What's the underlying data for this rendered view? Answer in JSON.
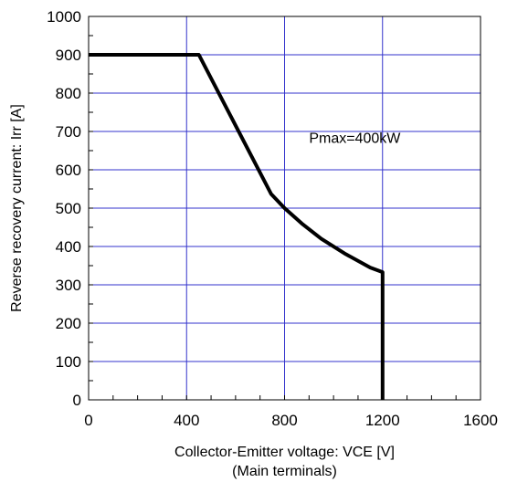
{
  "chart_data": {
    "type": "line",
    "title": "",
    "xlabel": "Collector-Emitter voltage: VCE [V]",
    "xlabel_sub": "(Main terminals)",
    "ylabel": "Reverse recovery current: Irr [A]",
    "xlim": [
      0,
      1600
    ],
    "ylim": [
      0,
      1000
    ],
    "x_ticks": [
      0,
      400,
      800,
      1200,
      1600
    ],
    "y_ticks": [
      0,
      100,
      200,
      300,
      400,
      500,
      600,
      700,
      800,
      900,
      1000
    ],
    "grid": true,
    "grid_color": "#3333cc",
    "line_color": "#000000",
    "annotation": {
      "text": "Pmax=400kW",
      "x": 900,
      "y": 670
    },
    "series": [
      {
        "x": [
          0,
          450,
          745,
          800,
          870,
          950,
          1050,
          1150,
          1200,
          1200
        ],
        "y": [
          900,
          900,
          537,
          500,
          460,
          420,
          380,
          345,
          333,
          0
        ]
      }
    ]
  }
}
